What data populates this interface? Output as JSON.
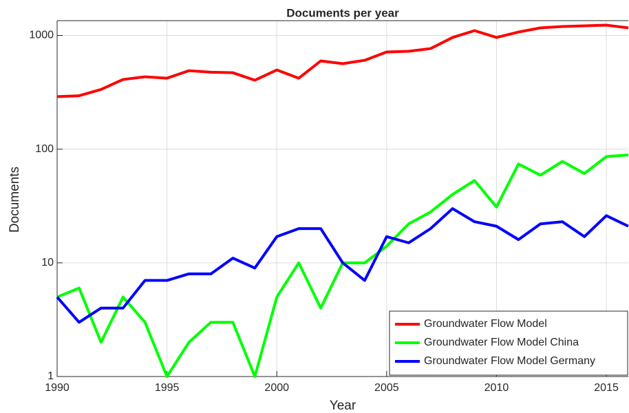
{
  "chart_data": {
    "type": "line",
    "title": "Documents per year",
    "xlabel": "Year",
    "ylabel": "Documents",
    "x": [
      1990,
      1991,
      1992,
      1993,
      1994,
      1995,
      1996,
      1997,
      1998,
      1999,
      2000,
      2001,
      2002,
      2003,
      2004,
      2005,
      2006,
      2007,
      2008,
      2009,
      2010,
      2011,
      2012,
      2013,
      2014,
      2015,
      2016
    ],
    "series": [
      {
        "name": "Groundwater Flow Model",
        "color": "#ff0000",
        "values": [
          290,
          295,
          335,
          410,
          433,
          421,
          490,
          475,
          470,
          404,
          497,
          421,
          597,
          565,
          605,
          716,
          726,
          767,
          960,
          1103,
          960,
          1072,
          1166,
          1200,
          1215,
          1233,
          1166
        ]
      },
      {
        "name": "Groundwater Flow Model China",
        "color": "#00ff00",
        "values": [
          5,
          6,
          2,
          5,
          3,
          1,
          2,
          3,
          3,
          1,
          5,
          10,
          4,
          10,
          10,
          14,
          22,
          28,
          40,
          53,
          31,
          74,
          59,
          78,
          61,
          86,
          89
        ]
      },
      {
        "name": "Groundwater Flow Model Germany",
        "color": "#0000ff",
        "values": [
          5,
          3,
          4,
          4,
          7,
          7,
          8,
          8,
          11,
          9,
          17,
          20,
          20,
          10,
          7,
          17,
          15,
          20,
          30,
          23,
          21,
          16,
          22,
          23,
          17,
          26,
          21
        ]
      }
    ],
    "xlim": [
      1990,
      2016
    ],
    "xticks": [
      1990,
      1995,
      2000,
      2005,
      2010,
      2015
    ],
    "ylim": [
      1,
      1350
    ],
    "yticks": [
      1,
      10,
      100,
      1000
    ],
    "log_y": true,
    "grid": true,
    "legend": "lower right"
  }
}
